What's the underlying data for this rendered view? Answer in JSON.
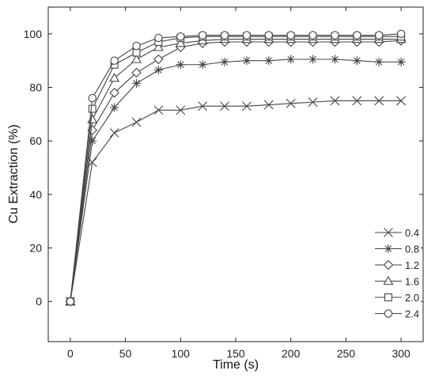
{
  "chart_data": {
    "type": "line",
    "title": "",
    "xlabel": "Time (s)",
    "ylabel": "Cu Extraction (%)",
    "xlim": [
      -20,
      320
    ],
    "ylim": [
      -15,
      110
    ],
    "xticks": [
      0,
      50,
      100,
      150,
      200,
      250,
      300
    ],
    "yticks": [
      0,
      20,
      40,
      60,
      80,
      100
    ],
    "grid": false,
    "legend_position": "bottom-right",
    "x": [
      0,
      20,
      40,
      60,
      80,
      100,
      120,
      140,
      160,
      180,
      200,
      220,
      240,
      260,
      280,
      300
    ],
    "series": [
      {
        "name": "0.4",
        "marker": "x",
        "values": [
          0,
          52,
          63,
          67,
          71.5,
          71.5,
          73,
          73,
          73,
          73.5,
          74,
          74.5,
          75,
          75,
          75,
          75
        ]
      },
      {
        "name": "0.8",
        "marker": "asterisk",
        "values": [
          0,
          60,
          72.5,
          81.5,
          86.5,
          88.5,
          88.5,
          89.5,
          90,
          90,
          90.5,
          90.5,
          90.5,
          90,
          89.5,
          89.5
        ]
      },
      {
        "name": "1.2",
        "marker": "diamond",
        "values": [
          0,
          64,
          78,
          85.5,
          90.5,
          95,
          96.5,
          97,
          97,
          97,
          97,
          97,
          97,
          97,
          97,
          97.5
        ]
      },
      {
        "name": "1.6",
        "marker": "triangle",
        "values": [
          0,
          68,
          83.5,
          90.5,
          95,
          96.5,
          97.5,
          98,
          98,
          98,
          98,
          98,
          98,
          98,
          98,
          98
        ]
      },
      {
        "name": "2.0",
        "marker": "square",
        "values": [
          0,
          72,
          88.5,
          93,
          97,
          98.5,
          99,
          99,
          99,
          99,
          99,
          99,
          99,
          99,
          99,
          99
        ]
      },
      {
        "name": "2.4",
        "marker": "circle",
        "values": [
          0,
          76,
          90,
          95.5,
          98.5,
          99,
          99.5,
          99.5,
          99.5,
          99.5,
          99.5,
          99.5,
          99.5,
          99.5,
          99.5,
          100
        ]
      }
    ]
  }
}
